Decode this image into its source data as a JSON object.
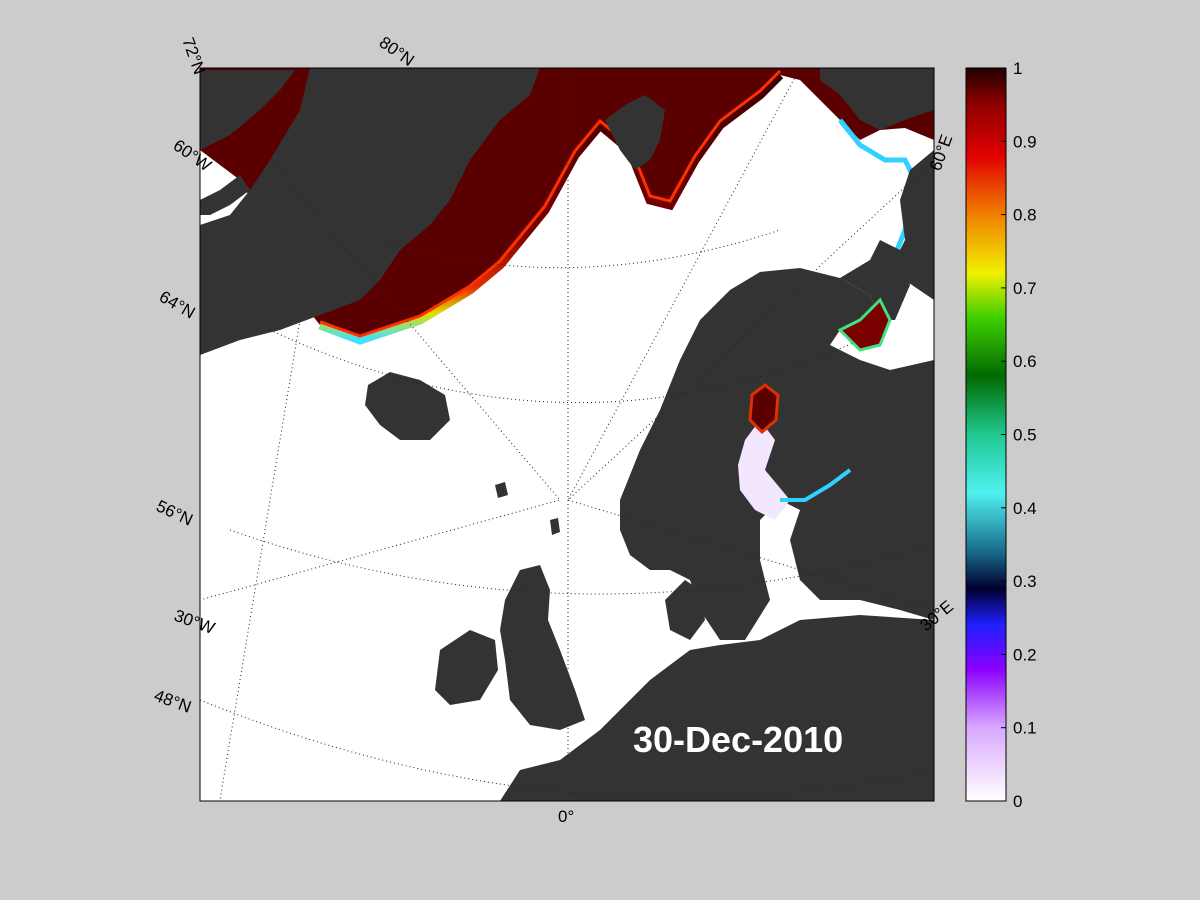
{
  "date_label": "30-Dec-2010",
  "map": {
    "graticule_labels": {
      "lat_72": "72°N",
      "lat_80": "80°N",
      "lat_64": "64°N",
      "lat_56": "56°N",
      "lat_48": "48°N",
      "lon_60w": "60°W",
      "lon_30w": "30°W",
      "lon_0": "0°",
      "lon_30e": "30°E",
      "lon_60e": "60°E"
    },
    "colors": {
      "land": "#333333",
      "land_shade": "#666666",
      "open_water": "#ffffff",
      "figure_bg": "#cccccc"
    }
  },
  "colorbar": {
    "ticks": [
      "0",
      "0.1",
      "0.2",
      "0.3",
      "0.4",
      "0.5",
      "0.6",
      "0.7",
      "0.8",
      "0.9",
      "1"
    ],
    "range": [
      0,
      1
    ]
  }
}
